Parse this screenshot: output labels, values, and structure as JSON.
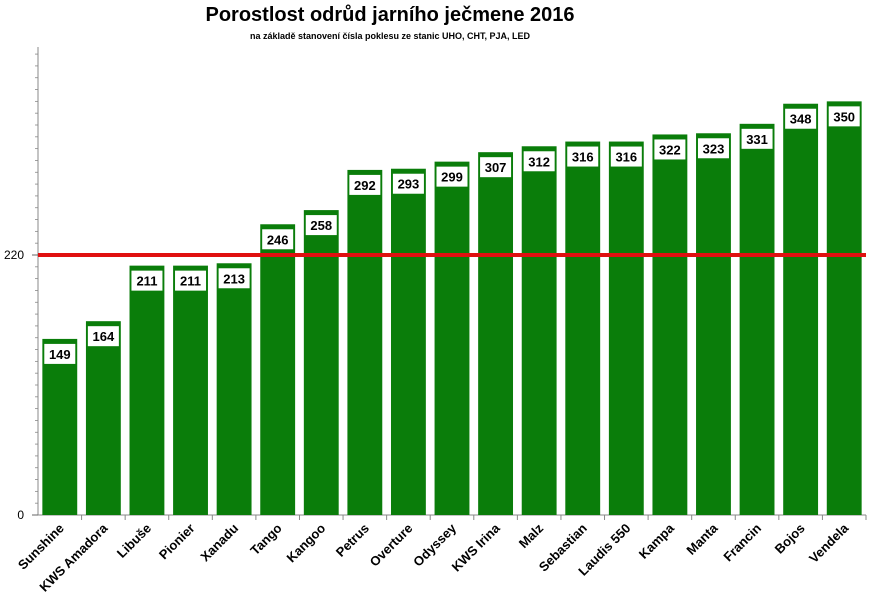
{
  "chart_data": {
    "type": "bar",
    "title": "Porostlost odrůd jarního ječmene 2016",
    "subtitle": "na základě stanovení čísla poklesu ze stanic UHO, CHT, PJA, LED",
    "categories": [
      "Sunshine",
      "KWS Amadora",
      "Libuše",
      "Pionier",
      "Xanadu",
      "Tango",
      "Kangoo",
      "Petrus",
      "Overture",
      "Odyssey",
      "KWS Irina",
      "Malz",
      "Sebastian",
      "Laudis 550",
      "Kampa",
      "Manta",
      "Francin",
      "Bojos",
      "Vendela"
    ],
    "values": [
      149,
      164,
      211,
      211,
      213,
      246,
      258,
      292,
      293,
      299,
      307,
      312,
      316,
      316,
      322,
      323,
      331,
      348,
      350
    ],
    "y_ticks": [
      "0",
      "220"
    ],
    "ylim": [
      0,
      396
    ],
    "reference_line": {
      "value": 220,
      "color": "#e01010"
    },
    "bar_color": "#0a7d0a",
    "grid": false,
    "legend": "none"
  }
}
